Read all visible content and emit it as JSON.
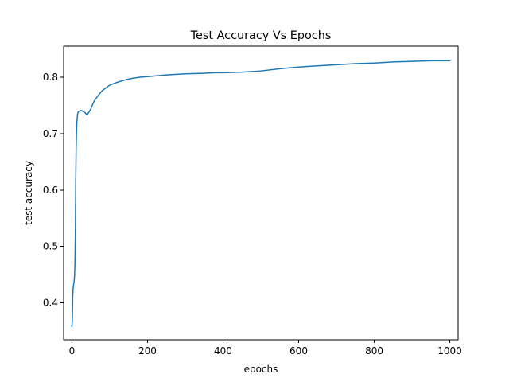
{
  "chart_data": {
    "type": "line",
    "title": "Test Accuracy Vs Epochs",
    "xlabel": "epochs",
    "ylabel": "test accuracy",
    "xlim": [
      -22,
      1022
    ],
    "ylim": [
      0.3345,
      0.855
    ],
    "xticks": [
      0,
      200,
      400,
      600,
      800,
      1000
    ],
    "xtick_labels": [
      "0",
      "200",
      "400",
      "600",
      "800",
      "1000"
    ],
    "yticks": [
      0.4,
      0.5,
      0.6,
      0.7,
      0.8
    ],
    "ytick_labels": [
      "0.4",
      "0.5",
      "0.6",
      "0.7",
      "0.8"
    ],
    "grid": false,
    "series": [
      {
        "color": "#1f77b4",
        "x": [
          0,
          1,
          2,
          3,
          4,
          5,
          6,
          7,
          8,
          9,
          10,
          11,
          12,
          13,
          15,
          17,
          20,
          25,
          30,
          35,
          40,
          45,
          50,
          55,
          60,
          70,
          80,
          90,
          100,
          120,
          140,
          160,
          180,
          200,
          250,
          300,
          350,
          380,
          400,
          450,
          500,
          550,
          600,
          650,
          700,
          750,
          800,
          850,
          900,
          950,
          1000
        ],
        "y": [
          0.358,
          0.37,
          0.41,
          0.425,
          0.43,
          0.435,
          0.44,
          0.45,
          0.47,
          0.52,
          0.61,
          0.67,
          0.7,
          0.72,
          0.735,
          0.739,
          0.74,
          0.741,
          0.739,
          0.737,
          0.733,
          0.738,
          0.744,
          0.752,
          0.759,
          0.768,
          0.776,
          0.781,
          0.786,
          0.791,
          0.795,
          0.798,
          0.8,
          0.801,
          0.804,
          0.806,
          0.807,
          0.808,
          0.808,
          0.809,
          0.811,
          0.815,
          0.818,
          0.82,
          0.822,
          0.824,
          0.825,
          0.827,
          0.828,
          0.829,
          0.829
        ]
      }
    ]
  }
}
